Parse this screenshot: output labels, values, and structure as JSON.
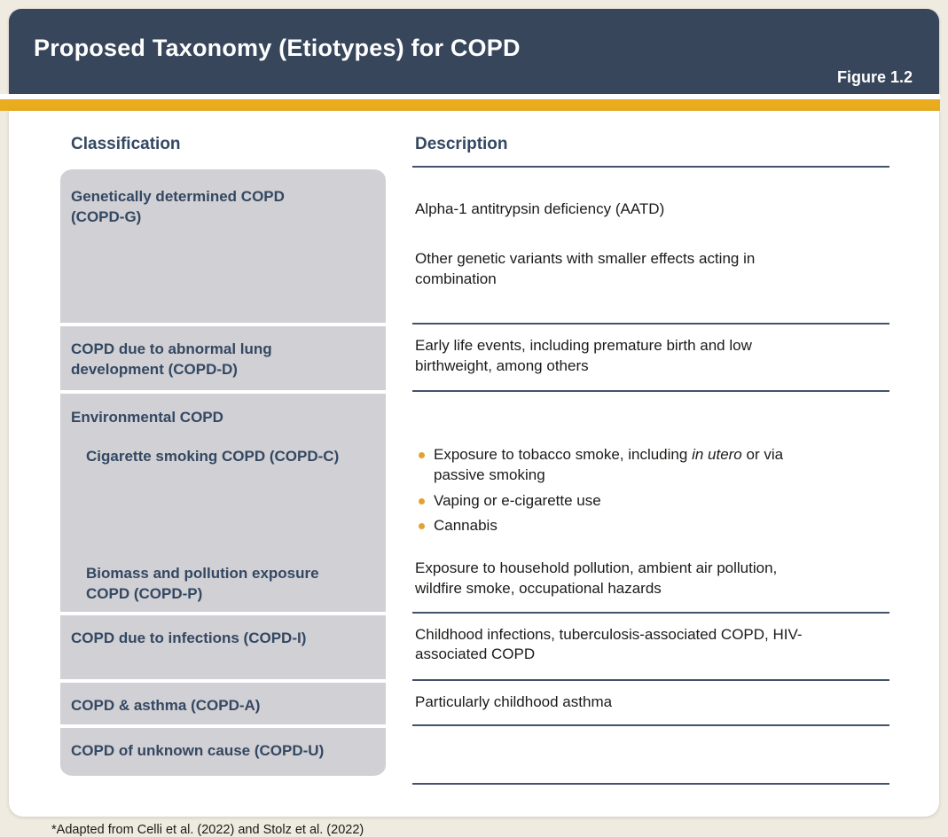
{
  "header": {
    "title": "Proposed Taxonomy (Etiotypes) for COPD",
    "figure_label": "Figure 1.2"
  },
  "table": {
    "classification_header": "Classification",
    "description_header": "Description",
    "rows": {
      "genetic": {
        "classification": "Genetically determined COPD\n(COPD-G)",
        "description_1": "Alpha-1 antitrypsin deficiency (AATD)",
        "description_2": "Other genetic variants with smaller effects acting in\ncombination"
      },
      "development": {
        "classification": "COPD due to abnormal lung\ndevelopment (COPD-D)",
        "description": "Early life events, including premature birth and low\nbirthweight, among others"
      },
      "environmental": {
        "classification": "Environmental COPD",
        "cigarette": {
          "classification": "Cigarette smoking COPD (COPD-C)",
          "bullet_tobacco_pre": "Exposure to tobacco smoke, including ",
          "bullet_tobacco_italic": "in utero",
          "bullet_tobacco_post": " or via\npassive smoking",
          "bullet_vaping": "Vaping or e-cigarette use",
          "bullet_cannabis": "Cannabis"
        },
        "biomass": {
          "classification": "Biomass and pollution exposure\nCOPD (COPD-P)",
          "description": "Exposure to household pollution, ambient air pollution,\nwildfire smoke, occupational hazards"
        }
      },
      "infections": {
        "classification": "COPD due to infections (COPD-I)",
        "description": "Childhood infections, tuberculosis-associated COPD, HIV-\nassociated COPD"
      },
      "asthma": {
        "classification": "COPD & asthma (COPD-A)",
        "description": "Particularly childhood asthma"
      },
      "unknown": {
        "classification": "COPD of unknown cause (COPD-U)",
        "description": ""
      }
    }
  },
  "footnote": "*Adapted from Celli et al. (2022) and Stolz et al. (2022)",
  "colors": {
    "navy": "#37465B",
    "gold": "#E8AC1E",
    "gray": "#D1D0D4",
    "cream": "#F0EBE0",
    "line": "#42526B",
    "bullet": "#E2A233",
    "navy_text": "#334862",
    "body_text": "#1B1B19"
  }
}
